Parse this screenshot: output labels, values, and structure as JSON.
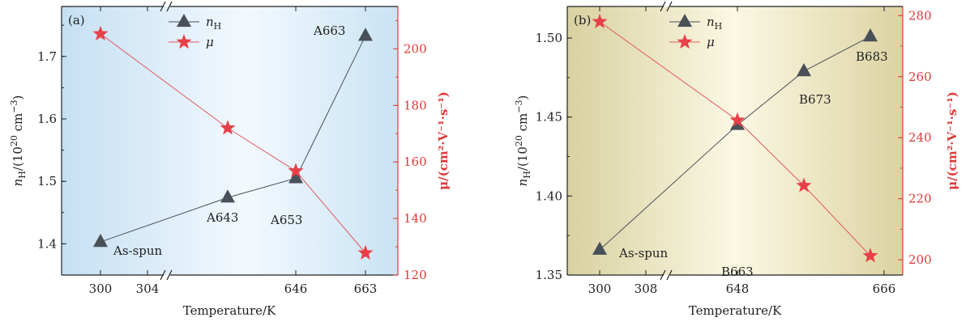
{
  "colors": {
    "nh": "#4a5058",
    "mu": "#e84048",
    "mu_line": "#e05a60",
    "axis": "#222222",
    "right_axis": "#e03a3a"
  },
  "chart_data": [
    {
      "type": "line",
      "panel_label": "(a)",
      "background": "blue-gradient",
      "xlabel": "Temperature/K",
      "ylabel_left": {
        "base": "n",
        "sub": "H",
        "rest": "/(10",
        "sup": "20",
        "tail": " cm",
        "sup2": "−3",
        "close": ")"
      },
      "ylabel_right": {
        "text": "μ/(cm²·V⁻¹·s⁻¹)"
      },
      "x_ticks": [
        "300",
        "304",
        "646",
        "663"
      ],
      "x_break_after": "304",
      "ylim_left": [
        1.35,
        1.78
      ],
      "yticks_left": [
        "1.4",
        "1.5",
        "1.6",
        "1.7"
      ],
      "ylim_right": [
        120,
        215
      ],
      "yticks_right": [
        "120",
        "140",
        "160",
        "180",
        "200"
      ],
      "legend": {
        "nh": "n_H",
        "mu": "μ",
        "nh_label": "n",
        "nh_sub": "H",
        "mu_label": "μ"
      },
      "series": [
        {
          "name": "n_H",
          "x": [
            "300",
            "640",
            "653",
            "663"
          ],
          "values": [
            1.403,
            1.474,
            1.505,
            1.733
          ],
          "point_labels": [
            "As-spun",
            "A643",
            "A653",
            "A663"
          ]
        },
        {
          "name": "μ",
          "x": [
            "300",
            "640",
            "653",
            "663"
          ],
          "values": [
            205.3,
            172.0,
            156.8,
            127.8
          ]
        }
      ]
    },
    {
      "type": "line",
      "panel_label": "(b)",
      "background": "yellow-gradient",
      "xlabel": "Temperature/K",
      "ylabel_left": {
        "base": "n",
        "sub": "H",
        "rest": "/(10",
        "sup": "20",
        "tail": " cm",
        "sup2": "−3",
        "close": ")"
      },
      "ylabel_right": {
        "text": "μ/(cm²·V⁻¹·s⁻¹)"
      },
      "x_ticks": [
        "300",
        "308",
        "648",
        "666"
      ],
      "x_break_after": "308",
      "ylim_left": [
        1.35,
        1.52
      ],
      "yticks_left": [
        "1.35",
        "1.40",
        "1.45",
        "1.50"
      ],
      "ylim_right": [
        195,
        283
      ],
      "yticks_right": [
        "200",
        "220",
        "240",
        "260",
        "280"
      ],
      "legend": {
        "nh": "n_H",
        "mu": "μ",
        "nh_label": "n",
        "nh_sub": "H",
        "mu_label": "μ"
      },
      "series": [
        {
          "name": "n_H",
          "x": [
            "300",
            "643",
            "653",
            "663"
          ],
          "values": [
            1.366,
            1.445,
            1.479,
            1.501
          ],
          "point_labels": [
            "As-spun",
            "B663",
            "B673",
            "B683"
          ]
        },
        {
          "name": "μ",
          "x": [
            "300",
            "643",
            "653",
            "663"
          ],
          "values": [
            278.0,
            245.7,
            224.3,
            201.3
          ]
        }
      ]
    }
  ]
}
